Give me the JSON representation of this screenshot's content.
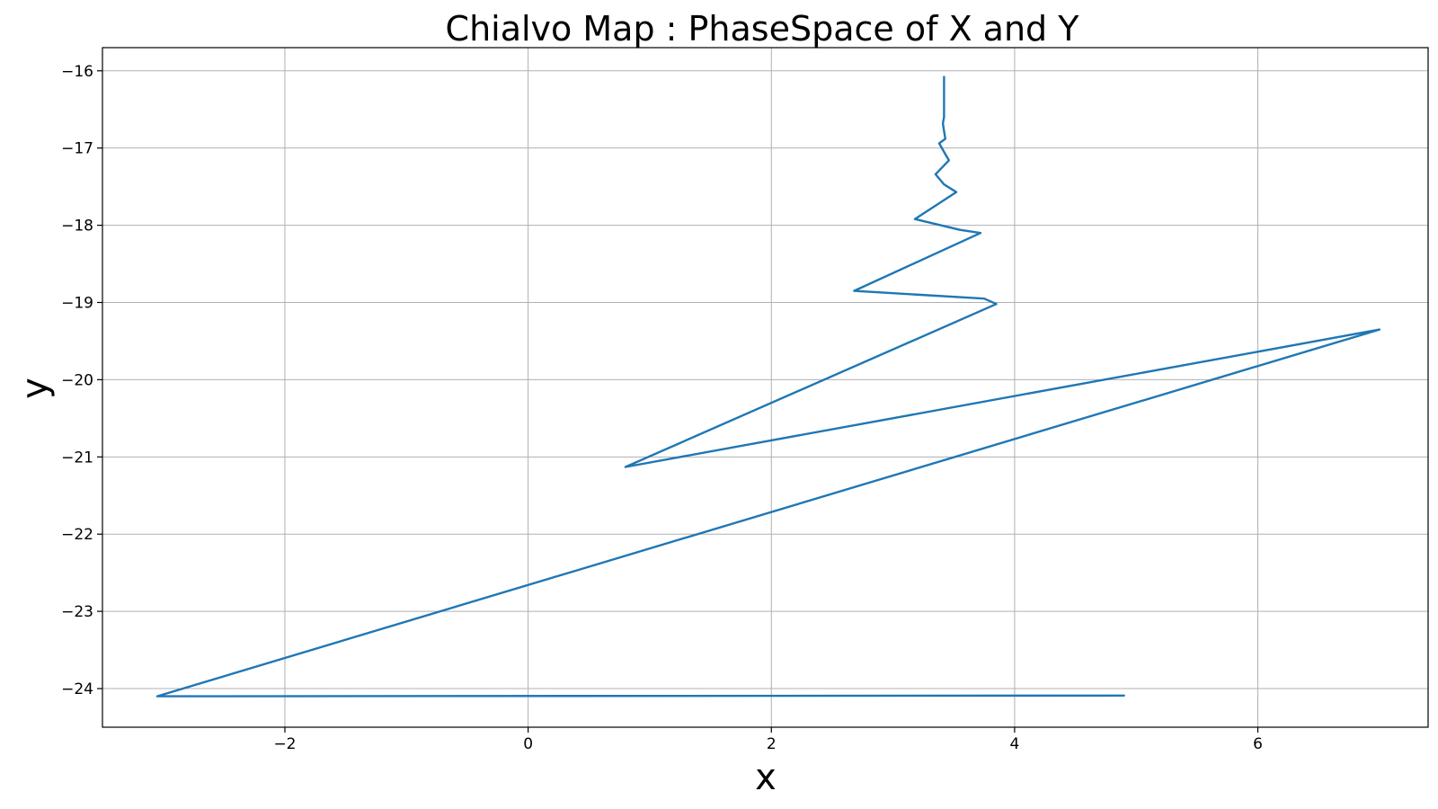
{
  "chart_data": {
    "type": "line",
    "title": "Chialvo Map : PhaseSpace of X and Y",
    "xlabel": "x",
    "ylabel": "y",
    "xlim": [
      -3.5,
      7.4
    ],
    "ylim": [
      -24.5,
      -15.7
    ],
    "grid": true,
    "x_ticks": [
      -2,
      0,
      2,
      4,
      6
    ],
    "y_ticks": [
      -16,
      -17,
      -18,
      -19,
      -20,
      -21,
      -22,
      -23,
      -24
    ],
    "x_tick_labels": [
      "−2",
      "0",
      "2",
      "4",
      "6"
    ],
    "y_tick_labels": [
      "−16",
      "−17",
      "−18",
      "−19",
      "−20",
      "−21",
      "−22",
      "−23",
      "−24"
    ],
    "series": [
      {
        "color": "#1f77b4",
        "points": [
          [
            4.9,
            -24.09
          ],
          [
            -3.05,
            -24.1
          ],
          [
            7.0,
            -19.35
          ],
          [
            0.8,
            -21.13
          ],
          [
            3.85,
            -19.02
          ],
          [
            3.75,
            -18.95
          ],
          [
            2.68,
            -18.85
          ],
          [
            3.72,
            -18.1
          ],
          [
            3.55,
            -18.06
          ],
          [
            3.18,
            -17.92
          ],
          [
            3.52,
            -17.57
          ],
          [
            3.42,
            -17.47
          ],
          [
            3.35,
            -17.34
          ],
          [
            3.46,
            -17.16
          ],
          [
            3.42,
            -17.05
          ],
          [
            3.38,
            -16.94
          ],
          [
            3.43,
            -16.88
          ],
          [
            3.42,
            -16.78
          ],
          [
            3.41,
            -16.68
          ],
          [
            3.42,
            -16.6
          ],
          [
            3.42,
            -16.48
          ],
          [
            3.42,
            -16.35
          ],
          [
            3.42,
            -16.22
          ],
          [
            3.42,
            -16.08
          ]
        ]
      }
    ]
  }
}
